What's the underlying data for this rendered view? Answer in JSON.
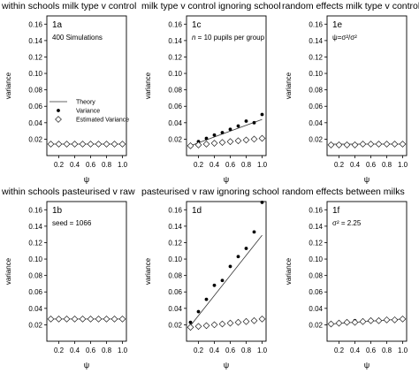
{
  "chart_data": [
    {
      "type": "scatter",
      "title": "within schools milk type v control",
      "panel_label": "1a",
      "annotation": "400 Simulations",
      "xlabel": "ψ",
      "ylabel": "variance",
      "xlim": [
        0.05,
        1.05
      ],
      "ylim": [
        0,
        0.17
      ],
      "x_ticks": [
        "0.2",
        "0.4",
        "0.6",
        "0.8",
        "1.0"
      ],
      "y_ticks": [
        "0.02",
        "0.04",
        "0.06",
        "0.08",
        "0.10",
        "0.12",
        "0.14",
        "0.16"
      ],
      "legend": {
        "placement": "center-left",
        "items": [
          "Theory",
          "Variance",
          "Estimated Variance"
        ]
      },
      "series": [
        {
          "name": "Theory",
          "mark": "line",
          "x": [
            0.1,
            1.0
          ],
          "values": [
            0.014,
            0.014
          ]
        },
        {
          "name": "Variance",
          "mark": "dot",
          "x": [
            0.1,
            0.2,
            0.3,
            0.4,
            0.5,
            0.6,
            0.7,
            0.8,
            0.9,
            1.0
          ],
          "values": [
            0.014,
            0.013,
            0.014,
            0.013,
            0.014,
            0.014,
            0.015,
            0.014,
            0.014,
            0.014
          ]
        },
        {
          "name": "Estimated Variance",
          "mark": "diamond",
          "x": [
            0.1,
            0.2,
            0.3,
            0.4,
            0.5,
            0.6,
            0.7,
            0.8,
            0.9,
            1.0
          ],
          "values": [
            0.014,
            0.014,
            0.014,
            0.014,
            0.014,
            0.014,
            0.014,
            0.014,
            0.014,
            0.014
          ]
        }
      ]
    },
    {
      "type": "scatter",
      "title": "milk type v control ignoring school",
      "panel_label": "1c",
      "annotation_prefix": "n",
      "annotation": " = 10 pupils per group",
      "xlabel": "ψ",
      "ylabel": "variance",
      "xlim": [
        0.05,
        1.05
      ],
      "ylim": [
        0,
        0.17
      ],
      "x_ticks": [
        "0.2",
        "0.4",
        "0.6",
        "0.8",
        "1.0"
      ],
      "y_ticks": [
        "0.02",
        "0.04",
        "0.06",
        "0.08",
        "0.10",
        "0.12",
        "0.14",
        "0.16"
      ],
      "series": [
        {
          "mark": "line",
          "x": [
            0.1,
            1.0
          ],
          "values": [
            0.012,
            0.044
          ]
        },
        {
          "mark": "dot",
          "x": [
            0.1,
            0.2,
            0.3,
            0.4,
            0.5,
            0.6,
            0.7,
            0.8,
            0.9,
            1.0
          ],
          "values": [
            0.012,
            0.017,
            0.021,
            0.025,
            0.028,
            0.032,
            0.036,
            0.042,
            0.04,
            0.05
          ]
        },
        {
          "mark": "diamond",
          "x": [
            0.1,
            0.2,
            0.3,
            0.4,
            0.5,
            0.6,
            0.7,
            0.8,
            0.9,
            1.0
          ],
          "values": [
            0.012,
            0.013,
            0.014,
            0.015,
            0.016,
            0.017,
            0.018,
            0.019,
            0.02,
            0.021
          ]
        }
      ]
    },
    {
      "type": "scatter",
      "title": "random effects milk type v control",
      "panel_label": "1e",
      "annotation": "ψ=σ²/σ²",
      "xlabel": "ψ",
      "ylabel": "variance",
      "xlim": [
        0.05,
        1.05
      ],
      "ylim": [
        0,
        0.17
      ],
      "x_ticks": [
        "0.2",
        "0.4",
        "0.6",
        "0.8",
        "1.0"
      ],
      "y_ticks": [
        "0.02",
        "0.04",
        "0.06",
        "0.08",
        "0.10",
        "0.12",
        "0.14",
        "0.16"
      ],
      "series": [
        {
          "mark": "line",
          "x": [
            0.1,
            1.0
          ],
          "values": [
            0.014,
            0.014
          ]
        },
        {
          "mark": "dot",
          "x": [
            0.1,
            0.2,
            0.3,
            0.4,
            0.5,
            0.6,
            0.7,
            0.8,
            0.9,
            1.0
          ],
          "values": [
            0.013,
            0.014,
            0.014,
            0.014,
            0.014,
            0.014,
            0.015,
            0.014,
            0.014,
            0.015
          ]
        },
        {
          "mark": "diamond",
          "x": [
            0.1,
            0.2,
            0.3,
            0.4,
            0.5,
            0.6,
            0.7,
            0.8,
            0.9,
            1.0
          ],
          "values": [
            0.013,
            0.013,
            0.013,
            0.013,
            0.014,
            0.014,
            0.014,
            0.014,
            0.014,
            0.014
          ]
        }
      ]
    },
    {
      "type": "scatter",
      "title": "within schools pasteurised v raw",
      "panel_label": "1b",
      "annotation": "seed = 1066",
      "xlabel": "ψ",
      "ylabel": "variance",
      "xlim": [
        0.05,
        1.05
      ],
      "ylim": [
        0,
        0.17
      ],
      "x_ticks": [
        "0.2",
        "0.4",
        "0.6",
        "0.8",
        "1.0"
      ],
      "y_ticks": [
        "0.02",
        "0.04",
        "0.06",
        "0.08",
        "0.10",
        "0.12",
        "0.14",
        "0.16"
      ],
      "series": [
        {
          "mark": "line",
          "x": [
            0.1,
            1.0
          ],
          "values": [
            0.027,
            0.027
          ]
        },
        {
          "mark": "dot",
          "x": [
            0.1,
            0.2,
            0.3,
            0.4,
            0.5,
            0.6,
            0.7,
            0.8,
            0.9,
            1.0
          ],
          "values": [
            0.027,
            0.026,
            0.026,
            0.027,
            0.026,
            0.027,
            0.027,
            0.026,
            0.027,
            0.027
          ]
        },
        {
          "mark": "diamond",
          "x": [
            0.1,
            0.2,
            0.3,
            0.4,
            0.5,
            0.6,
            0.7,
            0.8,
            0.9,
            1.0
          ],
          "values": [
            0.027,
            0.027,
            0.027,
            0.027,
            0.027,
            0.027,
            0.027,
            0.027,
            0.027,
            0.027
          ]
        }
      ]
    },
    {
      "type": "scatter",
      "title": "pasteurised v raw ignoring school",
      "panel_label": "1d",
      "xlabel": "ψ",
      "ylabel": "variance",
      "xlim": [
        0.05,
        1.05
      ],
      "ylim": [
        0,
        0.17
      ],
      "x_ticks": [
        "0.2",
        "0.4",
        "0.6",
        "0.8",
        "1.0"
      ],
      "y_ticks": [
        "0.02",
        "0.04",
        "0.06",
        "0.08",
        "0.10",
        "0.12",
        "0.14",
        "0.16"
      ],
      "series": [
        {
          "mark": "line",
          "x": [
            0.1,
            1.0
          ],
          "values": [
            0.019,
            0.129
          ]
        },
        {
          "mark": "dot",
          "x": [
            0.1,
            0.2,
            0.3,
            0.4,
            0.5,
            0.6,
            0.7,
            0.8,
            0.9,
            1.0
          ],
          "values": [
            0.023,
            0.036,
            0.051,
            0.068,
            0.074,
            0.091,
            0.103,
            0.113,
            0.133,
            0.169
          ]
        },
        {
          "mark": "diamond",
          "x": [
            0.1,
            0.2,
            0.3,
            0.4,
            0.5,
            0.6,
            0.7,
            0.8,
            0.9,
            1.0
          ],
          "values": [
            0.017,
            0.018,
            0.019,
            0.02,
            0.021,
            0.022,
            0.023,
            0.024,
            0.025,
            0.027
          ]
        }
      ]
    },
    {
      "type": "scatter",
      "title": "random effects between milks",
      "panel_label": "1f",
      "annotation": "σ² = 2.25",
      "xlabel": "ψ",
      "ylabel": "variance",
      "xlim": [
        0.05,
        1.05
      ],
      "ylim": [
        0,
        0.17
      ],
      "x_ticks": [
        "0.2",
        "0.4",
        "0.6",
        "0.8",
        "1.0"
      ],
      "y_ticks": [
        "0.02",
        "0.04",
        "0.06",
        "0.08",
        "0.10",
        "0.12",
        "0.14",
        "0.16"
      ],
      "series": [
        {
          "mark": "line",
          "x": [
            0.1,
            1.0
          ],
          "values": [
            0.021,
            0.027
          ]
        },
        {
          "mark": "dot",
          "x": [
            0.1,
            0.2,
            0.3,
            0.4,
            0.5,
            0.6,
            0.7,
            0.8,
            0.9,
            1.0
          ],
          "values": [
            0.02,
            0.023,
            0.024,
            0.025,
            0.024,
            0.026,
            0.026,
            0.025,
            0.026,
            0.027
          ]
        },
        {
          "mark": "diamond",
          "x": [
            0.1,
            0.2,
            0.3,
            0.4,
            0.5,
            0.6,
            0.7,
            0.8,
            0.9,
            1.0
          ],
          "values": [
            0.021,
            0.022,
            0.023,
            0.023,
            0.024,
            0.025,
            0.025,
            0.026,
            0.026,
            0.027
          ]
        }
      ]
    }
  ]
}
